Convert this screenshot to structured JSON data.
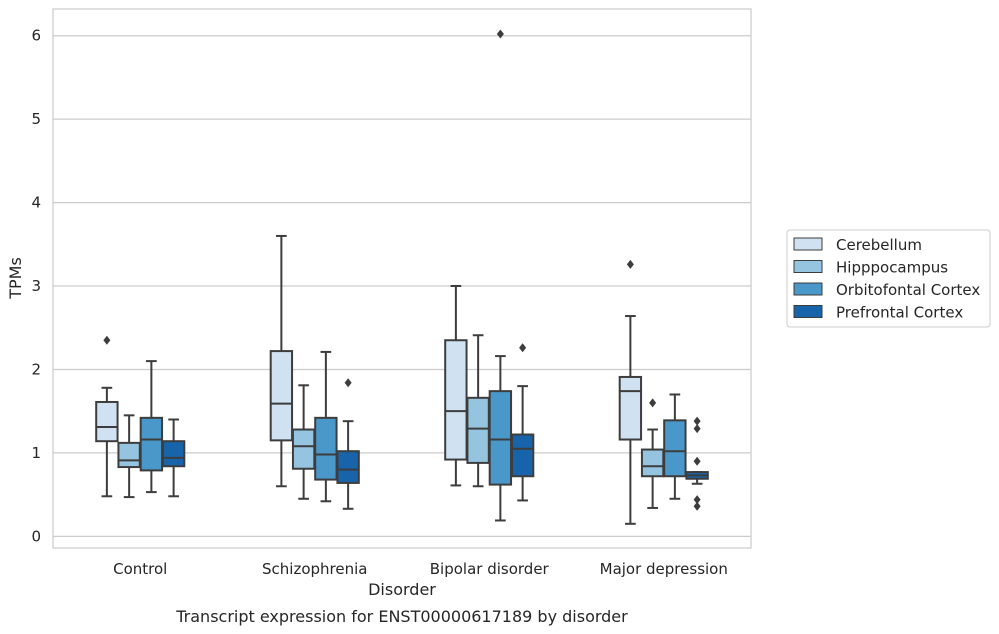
{
  "chart_data": {
    "type": "boxplot",
    "caption": "Transcript expression for ENST00000617189 by disorder",
    "xlabel": "Disorder",
    "ylabel": "TPMs",
    "ylim": [
      -0.14,
      6.32
    ],
    "yticks": [
      0,
      1,
      2,
      3,
      4,
      5,
      6
    ],
    "categories": [
      "Control",
      "Schizophrenia",
      "Bipolar disorder",
      "Major depression"
    ],
    "grid": "horizontal",
    "legend_position": "right",
    "series": [
      {
        "name": "Cerebellum",
        "color": "#d0e1f2",
        "boxes": [
          {
            "whislo": 0.48,
            "q1": 1.14,
            "med": 1.31,
            "q3": 1.61,
            "whishi": 1.78,
            "fliers": [
              2.35
            ]
          },
          {
            "whislo": 0.6,
            "q1": 1.15,
            "med": 1.59,
            "q3": 2.22,
            "whishi": 3.6,
            "fliers": []
          },
          {
            "whislo": 0.61,
            "q1": 0.92,
            "med": 1.5,
            "q3": 2.35,
            "whishi": 3.0,
            "fliers": []
          },
          {
            "whislo": 0.15,
            "q1": 1.16,
            "med": 1.74,
            "q3": 1.91,
            "whishi": 2.64,
            "fliers": [
              3.26
            ]
          }
        ]
      },
      {
        "name": "Hipppocampus",
        "color": "#94c4df",
        "boxes": [
          {
            "whislo": 0.47,
            "q1": 0.83,
            "med": 0.91,
            "q3": 1.12,
            "whishi": 1.45,
            "fliers": []
          },
          {
            "whislo": 0.45,
            "q1": 0.81,
            "med": 1.08,
            "q3": 1.28,
            "whishi": 1.81,
            "fliers": []
          },
          {
            "whislo": 0.6,
            "q1": 0.88,
            "med": 1.29,
            "q3": 1.66,
            "whishi": 2.41,
            "fliers": []
          },
          {
            "whislo": 0.34,
            "q1": 0.72,
            "med": 0.84,
            "q3": 1.04,
            "whishi": 1.28,
            "fliers": [
              1.6
            ]
          }
        ]
      },
      {
        "name": "Orbitofontal Cortex",
        "color": "#4a98c9",
        "boxes": [
          {
            "whislo": 0.53,
            "q1": 0.79,
            "med": 1.16,
            "q3": 1.42,
            "whishi": 2.1,
            "fliers": []
          },
          {
            "whislo": 0.42,
            "q1": 0.68,
            "med": 0.98,
            "q3": 1.42,
            "whishi": 2.21,
            "fliers": []
          },
          {
            "whislo": 0.19,
            "q1": 0.62,
            "med": 1.16,
            "q3": 1.74,
            "whishi": 2.16,
            "fliers": [
              6.02
            ]
          },
          {
            "whislo": 0.45,
            "q1": 0.72,
            "med": 1.02,
            "q3": 1.39,
            "whishi": 1.7,
            "fliers": []
          }
        ]
      },
      {
        "name": "Prefrontal Cortex",
        "color": "#1764ab",
        "boxes": [
          {
            "whislo": 0.48,
            "q1": 0.84,
            "med": 0.94,
            "q3": 1.14,
            "whishi": 1.4,
            "fliers": []
          },
          {
            "whislo": 0.33,
            "q1": 0.64,
            "med": 0.8,
            "q3": 1.02,
            "whishi": 1.38,
            "fliers": [
              1.84
            ]
          },
          {
            "whislo": 0.43,
            "q1": 0.72,
            "med": 1.05,
            "q3": 1.22,
            "whishi": 1.8,
            "fliers": [
              2.26
            ]
          },
          {
            "whislo": 0.63,
            "q1": 0.69,
            "med": 0.73,
            "q3": 0.77,
            "whishi": 0.77,
            "fliers": [
              1.38,
              1.29,
              0.9,
              0.44,
              0.36
            ]
          }
        ]
      }
    ]
  }
}
